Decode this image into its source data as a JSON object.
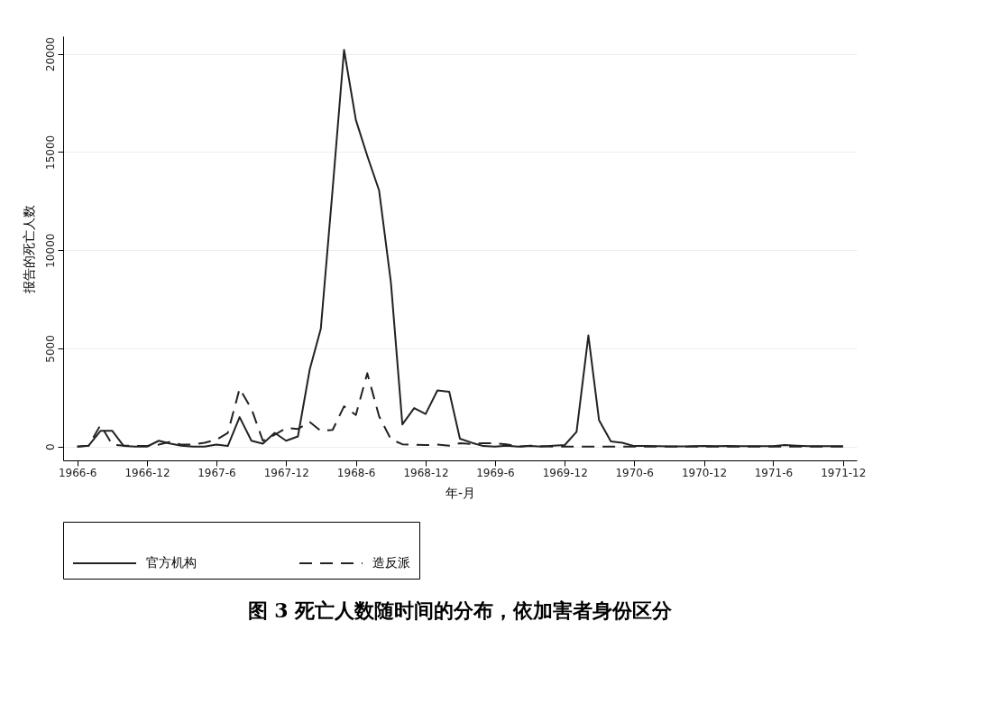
{
  "chart_data": {
    "type": "line",
    "title": "图 3  死亡人数随时间的分布，依加害者身份区分",
    "xlabel": "年-月",
    "ylabel": "报告的死亡人数",
    "x": [
      "1966-06",
      "1966-07",
      "1966-08",
      "1966-09",
      "1966-10",
      "1966-11",
      "1966-12",
      "1967-01",
      "1967-02",
      "1967-03",
      "1967-04",
      "1967-05",
      "1967-06",
      "1967-07",
      "1967-08",
      "1967-09",
      "1967-10",
      "1967-11",
      "1967-12",
      "1968-01",
      "1968-02",
      "1968-03",
      "1968-04",
      "1968-05",
      "1968-06",
      "1968-07",
      "1968-08",
      "1968-09",
      "1968-10",
      "1968-11",
      "1968-12",
      "1969-01",
      "1969-02",
      "1969-03",
      "1969-04",
      "1969-05",
      "1969-06",
      "1969-07",
      "1969-08",
      "1969-09",
      "1969-10",
      "1969-11",
      "1969-12",
      "1970-01",
      "1970-02",
      "1970-03",
      "1970-04",
      "1970-05",
      "1970-06",
      "1970-07",
      "1970-08",
      "1970-09",
      "1970-10",
      "1970-11",
      "1970-12",
      "1971-01",
      "1971-02",
      "1971-03",
      "1971-04",
      "1971-05",
      "1971-06",
      "1971-07",
      "1971-08",
      "1971-09",
      "1971-10",
      "1971-11",
      "1971-12"
    ],
    "series": [
      {
        "name": "官方机构",
        "color": "#222222",
        "line_style": "solid",
        "values": [
          0,
          50,
          800,
          800,
          30,
          0,
          0,
          300,
          150,
          50,
          0,
          0,
          100,
          30,
          1500,
          300,
          150,
          700,
          300,
          520,
          3930,
          6000,
          13100,
          20200,
          16630,
          14800,
          13040,
          8350,
          1130,
          1960,
          1660,
          2860,
          2790,
          400,
          200,
          30,
          0,
          50,
          0,
          30,
          0,
          50,
          80,
          750,
          5660,
          1340,
          260,
          200,
          30,
          30,
          20,
          10,
          10,
          20,
          30,
          20,
          30,
          20,
          20,
          20,
          20,
          80,
          50,
          20,
          20,
          20,
          20
        ]
      },
      {
        "name": "造反派",
        "color": "#222222",
        "line_style": "dashed",
        "values": [
          0,
          50,
          1100,
          100,
          50,
          30,
          30,
          100,
          250,
          100,
          100,
          200,
          350,
          700,
          2950,
          1930,
          300,
          600,
          950,
          900,
          1250,
          800,
          850,
          2050,
          1610,
          3740,
          1540,
          370,
          120,
          100,
          80,
          100,
          50,
          170,
          140,
          170,
          170,
          120,
          0,
          50,
          20,
          0,
          0,
          0,
          0,
          0,
          0,
          0,
          0,
          0,
          0,
          0,
          0,
          0,
          0,
          0,
          0,
          0,
          0,
          0,
          0,
          0,
          0,
          0,
          0,
          0,
          0
        ]
      }
    ],
    "xlim": [
      "1966-04-25",
      "1972-01-06"
    ],
    "xticks": [
      {
        "value": "1966-06",
        "label": "1966-6"
      },
      {
        "value": "1966-12",
        "label": "1966-12"
      },
      {
        "value": "1967-06",
        "label": "1967-6"
      },
      {
        "value": "1967-12",
        "label": "1967-12"
      },
      {
        "value": "1968-06",
        "label": "1968-6"
      },
      {
        "value": "1968-12",
        "label": "1968-12"
      },
      {
        "value": "1969-06",
        "label": "1969-6"
      },
      {
        "value": "1969-12",
        "label": "1969-12"
      },
      {
        "value": "1970-06",
        "label": "1970-6"
      },
      {
        "value": "1970-12",
        "label": "1970-12"
      },
      {
        "value": "1971-06",
        "label": "1971-6"
      },
      {
        "value": "1971-12",
        "label": "1971-12"
      }
    ],
    "ylim": [
      -700,
      20900
    ],
    "yticks": [
      0,
      5000,
      10000,
      15000,
      20000
    ],
    "grid": "y",
    "legend": "bottom"
  }
}
